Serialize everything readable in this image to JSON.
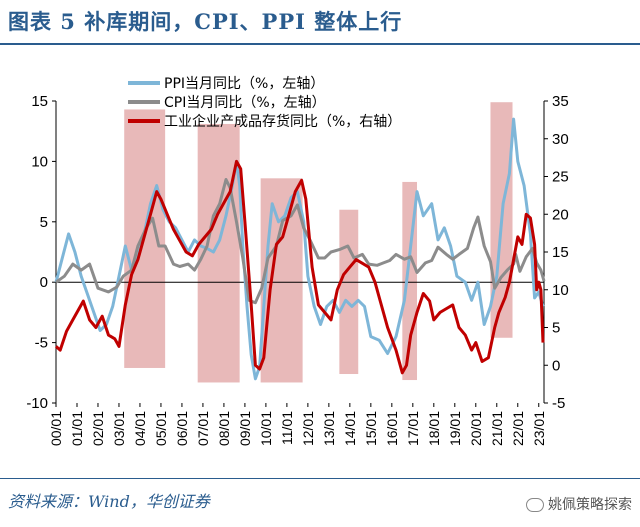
{
  "title": "图表 5   补库期间，CPI、PPI 整体上行",
  "source": "资料来源：Wind，华创证券",
  "brand": "姚佩策略探索",
  "colors": {
    "ppi": "#7eb6d8",
    "cpi": "#8c8c8c",
    "inventory": "#c00000",
    "shade": "#e8b9b9",
    "title": "#2a5c8e"
  },
  "chart_data": {
    "type": "line",
    "title": "",
    "legend_position": "top-center",
    "x_tick_labels": [
      "00/01",
      "01/01",
      "02/01",
      "03/01",
      "04/01",
      "05/01",
      "06/01",
      "07/01",
      "08/01",
      "09/01",
      "10/01",
      "11/01",
      "12/01",
      "13/01",
      "14/01",
      "15/01",
      "16/01",
      "17/01",
      "18/01",
      "19/01",
      "20/01",
      "21/01",
      "22/01",
      "23/01"
    ],
    "xlim": [
      2000.0,
      2023.25
    ],
    "y_left": {
      "range": [
        -10,
        15
      ],
      "ticks": [
        "-10",
        "-5",
        "0",
        "5",
        "10",
        "15"
      ]
    },
    "y_right": {
      "range": [
        -5,
        35
      ],
      "ticks": [
        "-5",
        "0",
        "5",
        "10",
        "15",
        "20",
        "25",
        "30",
        "35"
      ]
    },
    "shaded_periods": [
      {
        "start": 2003.25,
        "end": 2005.2
      },
      {
        "start": 2006.75,
        "end": 2008.75
      },
      {
        "start": 2009.75,
        "end": 2011.75
      },
      {
        "start": 2013.5,
        "end": 2014.4
      },
      {
        "start": 2016.5,
        "end": 2017.2
      },
      {
        "start": 2020.7,
        "end": 2021.75
      }
    ],
    "series": [
      {
        "name": "PPI当月同比（%，左轴）",
        "axis": "left",
        "points": [
          [
            2000.0,
            0.0
          ],
          [
            2000.3,
            2.0
          ],
          [
            2000.6,
            4.0
          ],
          [
            2000.9,
            2.5
          ],
          [
            2001.2,
            0.5
          ],
          [
            2001.5,
            -1.0
          ],
          [
            2001.8,
            -2.5
          ],
          [
            2002.1,
            -4.0
          ],
          [
            2002.4,
            -3.5
          ],
          [
            2002.7,
            -2.0
          ],
          [
            2003.0,
            0.5
          ],
          [
            2003.3,
            3.0
          ],
          [
            2003.6,
            1.0
          ],
          [
            2003.9,
            2.0
          ],
          [
            2004.2,
            4.0
          ],
          [
            2004.5,
            6.5
          ],
          [
            2004.8,
            8.0
          ],
          [
            2005.1,
            6.0
          ],
          [
            2005.4,
            5.0
          ],
          [
            2005.7,
            4.5
          ],
          [
            2006.0,
            3.5
          ],
          [
            2006.3,
            2.5
          ],
          [
            2006.6,
            3.5
          ],
          [
            2006.9,
            3.0
          ],
          [
            2007.2,
            2.8
          ],
          [
            2007.5,
            2.5
          ],
          [
            2007.8,
            3.5
          ],
          [
            2008.1,
            5.5
          ],
          [
            2008.4,
            8.0
          ],
          [
            2008.6,
            10.0
          ],
          [
            2008.75,
            8.0
          ],
          [
            2008.9,
            3.0
          ],
          [
            2009.1,
            -2.0
          ],
          [
            2009.3,
            -6.0
          ],
          [
            2009.5,
            -8.0
          ],
          [
            2009.7,
            -7.0
          ],
          [
            2009.9,
            -2.0
          ],
          [
            2010.1,
            3.0
          ],
          [
            2010.3,
            6.5
          ],
          [
            2010.6,
            5.0
          ],
          [
            2010.9,
            5.5
          ],
          [
            2011.2,
            7.0
          ],
          [
            2011.5,
            7.5
          ],
          [
            2011.8,
            5.0
          ],
          [
            2012.0,
            0.5
          ],
          [
            2012.3,
            -2.0
          ],
          [
            2012.6,
            -3.5
          ],
          [
            2012.9,
            -2.0
          ],
          [
            2013.2,
            -1.5
          ],
          [
            2013.5,
            -2.5
          ],
          [
            2013.8,
            -1.5
          ],
          [
            2014.1,
            -2.0
          ],
          [
            2014.4,
            -1.5
          ],
          [
            2014.7,
            -2.0
          ],
          [
            2015.0,
            -4.5
          ],
          [
            2015.4,
            -4.8
          ],
          [
            2015.8,
            -5.9
          ],
          [
            2016.2,
            -4.5
          ],
          [
            2016.6,
            -1.5
          ],
          [
            2016.9,
            3.0
          ],
          [
            2017.2,
            7.5
          ],
          [
            2017.5,
            5.5
          ],
          [
            2017.9,
            6.5
          ],
          [
            2018.2,
            3.5
          ],
          [
            2018.5,
            4.5
          ],
          [
            2018.8,
            3.0
          ],
          [
            2019.1,
            0.5
          ],
          [
            2019.5,
            0.0
          ],
          [
            2019.8,
            -1.5
          ],
          [
            2020.1,
            0.0
          ],
          [
            2020.4,
            -3.5
          ],
          [
            2020.7,
            -2.0
          ],
          [
            2021.0,
            0.5
          ],
          [
            2021.3,
            6.5
          ],
          [
            2021.6,
            9.0
          ],
          [
            2021.8,
            13.5
          ],
          [
            2022.0,
            10.0
          ],
          [
            2022.3,
            8.0
          ],
          [
            2022.6,
            4.0
          ],
          [
            2022.8,
            -1.3
          ],
          [
            2023.0,
            -0.8
          ],
          [
            2023.2,
            -2.0
          ]
        ]
      },
      {
        "name": "CPI当月同比（%，左轴）",
        "axis": "left",
        "points": [
          [
            2000.0,
            0.0
          ],
          [
            2000.4,
            0.5
          ],
          [
            2000.8,
            1.5
          ],
          [
            2001.2,
            1.0
          ],
          [
            2001.6,
            1.5
          ],
          [
            2002.0,
            -0.5
          ],
          [
            2002.5,
            -0.8
          ],
          [
            2002.9,
            -0.4
          ],
          [
            2003.2,
            0.5
          ],
          [
            2003.6,
            1.0
          ],
          [
            2003.9,
            3.0
          ],
          [
            2004.3,
            4.5
          ],
          [
            2004.6,
            5.3
          ],
          [
            2004.9,
            3.0
          ],
          [
            2005.2,
            3.0
          ],
          [
            2005.6,
            1.5
          ],
          [
            2005.9,
            1.3
          ],
          [
            2006.3,
            1.5
          ],
          [
            2006.6,
            1.0
          ],
          [
            2006.9,
            1.9
          ],
          [
            2007.2,
            3.0
          ],
          [
            2007.5,
            5.5
          ],
          [
            2007.8,
            6.5
          ],
          [
            2008.1,
            8.5
          ],
          [
            2008.3,
            7.8
          ],
          [
            2008.6,
            5.0
          ],
          [
            2008.9,
            2.0
          ],
          [
            2009.2,
            -1.5
          ],
          [
            2009.5,
            -1.7
          ],
          [
            2009.8,
            -0.5
          ],
          [
            2010.1,
            2.0
          ],
          [
            2010.5,
            3.0
          ],
          [
            2010.8,
            5.1
          ],
          [
            2011.2,
            5.5
          ],
          [
            2011.5,
            6.4
          ],
          [
            2011.8,
            4.5
          ],
          [
            2012.1,
            3.5
          ],
          [
            2012.5,
            2.0
          ],
          [
            2012.8,
            2.0
          ],
          [
            2013.1,
            2.5
          ],
          [
            2013.5,
            2.7
          ],
          [
            2013.9,
            3.0
          ],
          [
            2014.2,
            2.0
          ],
          [
            2014.6,
            2.3
          ],
          [
            2014.9,
            1.5
          ],
          [
            2015.3,
            1.4
          ],
          [
            2015.6,
            1.6
          ],
          [
            2015.9,
            1.8
          ],
          [
            2016.2,
            2.3
          ],
          [
            2016.6,
            1.9
          ],
          [
            2016.9,
            2.1
          ],
          [
            2017.2,
            0.8
          ],
          [
            2017.6,
            1.6
          ],
          [
            2017.9,
            1.8
          ],
          [
            2018.2,
            2.9
          ],
          [
            2018.6,
            2.3
          ],
          [
            2018.9,
            1.9
          ],
          [
            2019.2,
            2.3
          ],
          [
            2019.6,
            2.8
          ],
          [
            2019.9,
            4.5
          ],
          [
            2020.1,
            5.4
          ],
          [
            2020.4,
            3.0
          ],
          [
            2020.7,
            1.7
          ],
          [
            2020.9,
            -0.5
          ],
          [
            2021.2,
            0.4
          ],
          [
            2021.5,
            1.0
          ],
          [
            2021.8,
            1.5
          ],
          [
            2021.9,
            2.3
          ],
          [
            2022.1,
            0.9
          ],
          [
            2022.4,
            2.1
          ],
          [
            2022.7,
            2.8
          ],
          [
            2022.9,
            1.6
          ],
          [
            2023.1,
            1.0
          ],
          [
            2023.25,
            0.1
          ]
        ]
      },
      {
        "name": "工业企业产成品存货同比（%，右轴）",
        "axis": "right",
        "points": [
          [
            2000.0,
            2.5
          ],
          [
            2000.2,
            2.0
          ],
          [
            2000.5,
            4.5
          ],
          [
            2000.8,
            6.0
          ],
          [
            2001.0,
            7.0
          ],
          [
            2001.3,
            8.5
          ],
          [
            2001.6,
            6.0
          ],
          [
            2001.9,
            5.0
          ],
          [
            2002.2,
            6.5
          ],
          [
            2002.5,
            4.0
          ],
          [
            2002.8,
            3.5
          ],
          [
            2003.0,
            2.5
          ],
          [
            2003.3,
            8.0
          ],
          [
            2003.6,
            12.0
          ],
          [
            2003.9,
            14.0
          ],
          [
            2004.2,
            17.0
          ],
          [
            2004.5,
            20.0
          ],
          [
            2004.8,
            23.0
          ],
          [
            2005.0,
            22.0
          ],
          [
            2005.3,
            20.0
          ],
          [
            2005.6,
            18.0
          ],
          [
            2005.9,
            16.5
          ],
          [
            2006.2,
            15.0
          ],
          [
            2006.5,
            14.5
          ],
          [
            2006.8,
            16.0
          ],
          [
            2007.1,
            17.0
          ],
          [
            2007.4,
            18.0
          ],
          [
            2007.7,
            20.0
          ],
          [
            2008.0,
            21.5
          ],
          [
            2008.3,
            23.0
          ],
          [
            2008.6,
            27.0
          ],
          [
            2008.8,
            26.0
          ],
          [
            2009.0,
            19.0
          ],
          [
            2009.3,
            8.0
          ],
          [
            2009.5,
            0.0
          ],
          [
            2009.7,
            -0.5
          ],
          [
            2009.9,
            1.0
          ],
          [
            2010.2,
            10.0
          ],
          [
            2010.5,
            16.0
          ],
          [
            2010.8,
            17.0
          ],
          [
            2011.1,
            20.0
          ],
          [
            2011.4,
            23.0
          ],
          [
            2011.7,
            24.5
          ],
          [
            2011.9,
            22.0
          ],
          [
            2012.2,
            13.0
          ],
          [
            2012.5,
            8.0
          ],
          [
            2012.8,
            7.0
          ],
          [
            2013.1,
            6.0
          ],
          [
            2013.4,
            10.0
          ],
          [
            2013.7,
            12.0
          ],
          [
            2014.0,
            13.0
          ],
          [
            2014.3,
            14.0
          ],
          [
            2014.6,
            13.5
          ],
          [
            2014.9,
            13.0
          ],
          [
            2015.2,
            11.0
          ],
          [
            2015.5,
            8.0
          ],
          [
            2015.8,
            5.0
          ],
          [
            2016.2,
            2.0
          ],
          [
            2016.5,
            -1.0
          ],
          [
            2016.7,
            0.0
          ],
          [
            2016.9,
            4.0
          ],
          [
            2017.2,
            7.0
          ],
          [
            2017.5,
            9.5
          ],
          [
            2017.8,
            8.5
          ],
          [
            2018.0,
            6.0
          ],
          [
            2018.3,
            7.0
          ],
          [
            2018.6,
            7.5
          ],
          [
            2018.9,
            8.0
          ],
          [
            2019.2,
            5.0
          ],
          [
            2019.5,
            4.0
          ],
          [
            2019.8,
            2.0
          ],
          [
            2020.0,
            3.0
          ],
          [
            2020.3,
            0.5
          ],
          [
            2020.6,
            1.0
          ],
          [
            2020.9,
            5.0
          ],
          [
            2021.1,
            7.0
          ],
          [
            2021.4,
            9.0
          ],
          [
            2021.6,
            11.0
          ],
          [
            2021.8,
            14.0
          ],
          [
            2022.0,
            17.0
          ],
          [
            2022.2,
            16.0
          ],
          [
            2022.4,
            20.0
          ],
          [
            2022.6,
            19.5
          ],
          [
            2022.8,
            16.0
          ],
          [
            2022.9,
            10.0
          ],
          [
            2023.0,
            11.0
          ],
          [
            2023.1,
            10.0
          ],
          [
            2023.2,
            3.0
          ]
        ]
      }
    ]
  }
}
